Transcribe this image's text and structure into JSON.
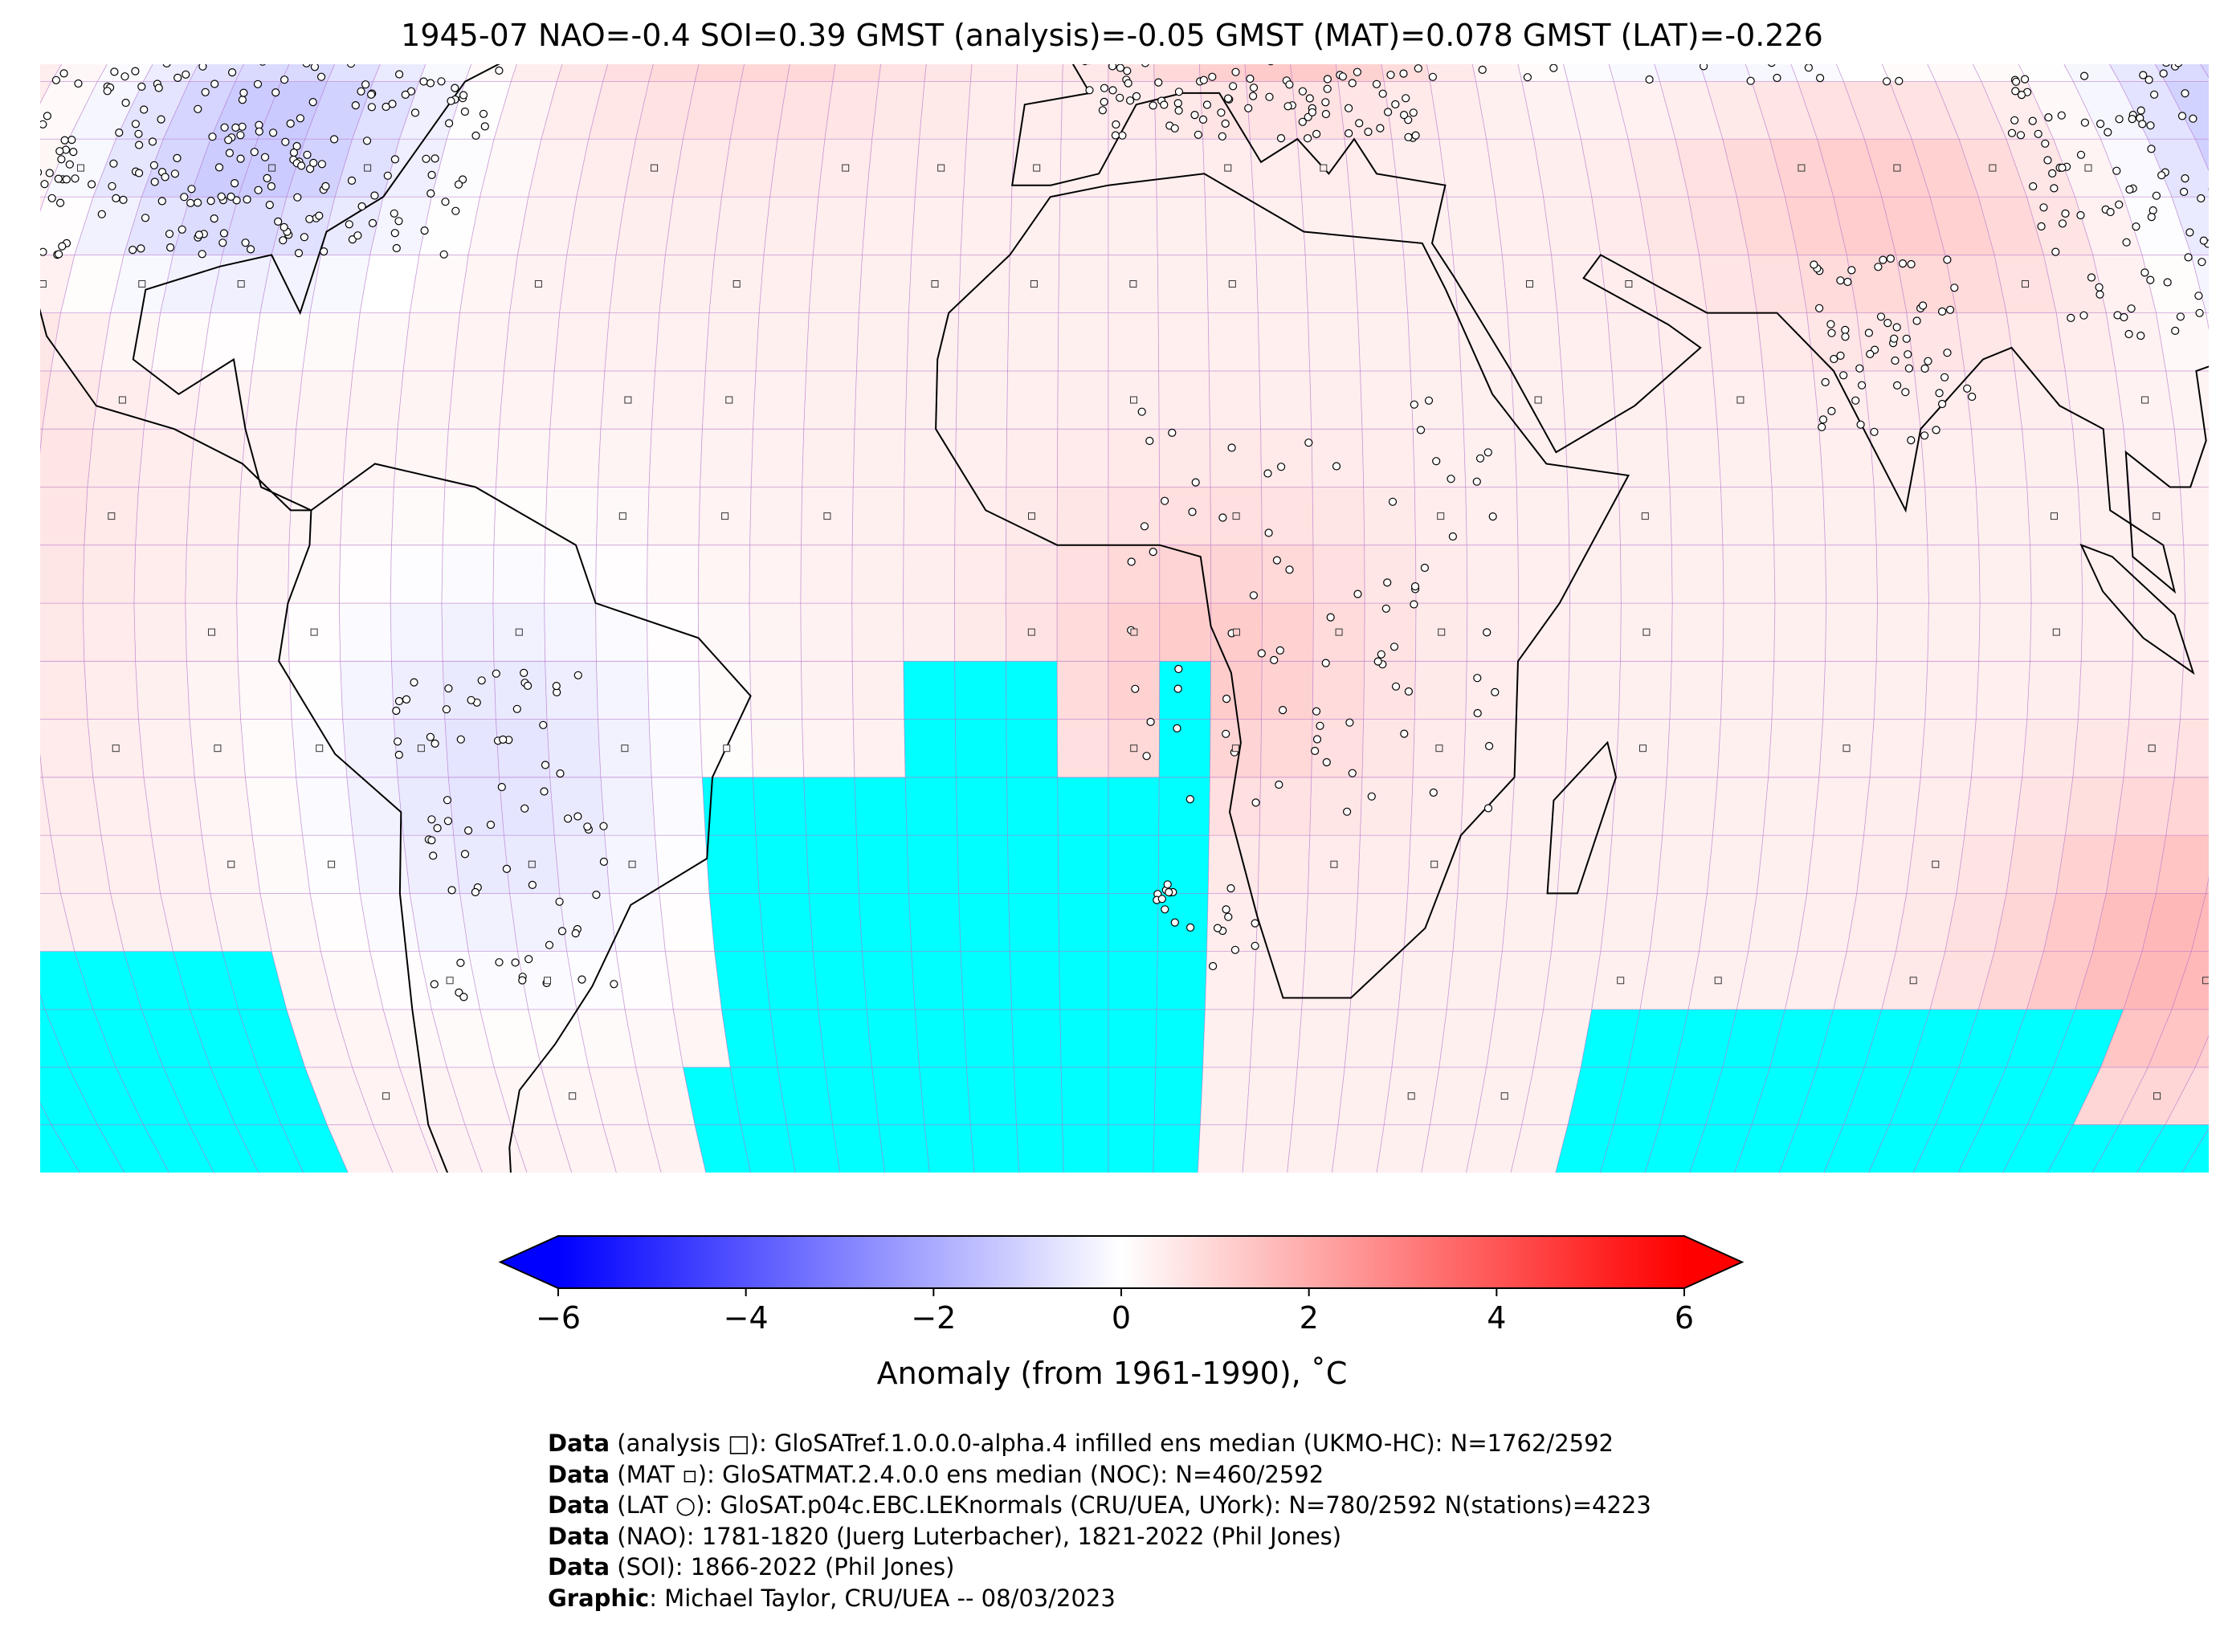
{
  "title": "1945-07 NAO=-0.4 SOI=0.39 GMST (analysis)=-0.05 GMST (MAT)=0.078 GMST (LAT)=-0.226",
  "map": {
    "projection": "Robinson",
    "gridlines": "5° lat/lon",
    "missing_color": "#00ffff",
    "land_mask_color": "#808080",
    "grid_color": "#b070c8"
  },
  "chart_data": {
    "type": "heatmap",
    "colormap": "bwr",
    "vmin": -6,
    "vmax": 6,
    "extend": "both",
    "ticks": [
      -6,
      -4,
      -2,
      0,
      2,
      4,
      6
    ],
    "tick_labels": [
      "−6",
      "−4",
      "−2",
      "0",
      "2",
      "4",
      "6"
    ],
    "colorbar_label": "Anomaly (from 1961-1990), ˚C"
  },
  "credits": [
    {
      "bold": "Data",
      "text": " (analysis □): GloSATref.1.0.0.0-alpha.4 infilled ens median (UKMO-HC): N=1762/2592"
    },
    {
      "bold": "Data",
      "text": " (MAT ▫): GloSATMAT.2.4.0.0 ens median (NOC): N=460/2592"
    },
    {
      "bold": "Data",
      "text": " (LAT ○): GloSAT.p04c.EBC.LEKnormals (CRU/UEA, UYork): N=780/2592 N(stations)=4223"
    },
    {
      "bold": "Data",
      "text": " (NAO): 1781-1820 (Juerg Luterbacher), 1821-2022 (Phil Jones)"
    },
    {
      "bold": "Data",
      "text": " (SOI): 1866-2022 (Phil Jones)"
    },
    {
      "bold": "Graphic",
      "text": ": Michael Taylor, CRU/UEA -- 08/03/2023"
    }
  ]
}
